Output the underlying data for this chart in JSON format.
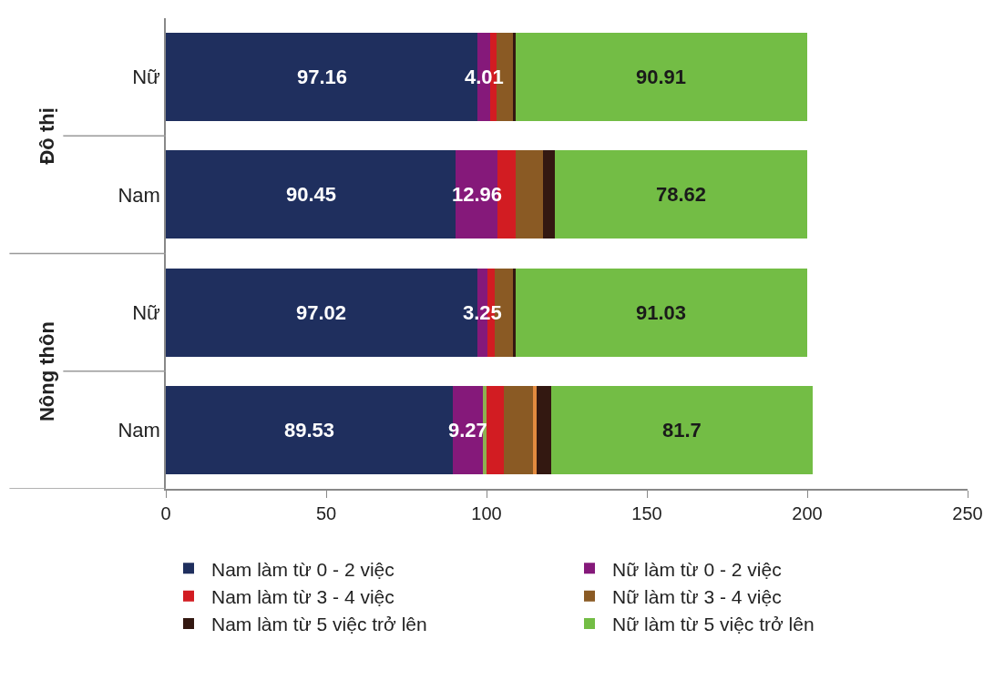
{
  "chart_data": {
    "type": "bar",
    "orientation": "horizontal",
    "stacked": true,
    "categories": [
      "Nữ",
      "Nam",
      "Nữ",
      "Nam"
    ],
    "annotations": [
      "Đô thị",
      "Nông thôn"
    ],
    "series": [
      {
        "name": "Nam làm từ 0 - 2 việc",
        "color": "#1f2f5e",
        "values": [
          97.16,
          90.45,
          97.02,
          89.53
        ],
        "value_labels": [
          "97.16",
          "90.45",
          "97.02",
          "89.53"
        ]
      },
      {
        "name": "Nữ làm từ 0 - 2 việc",
        "color": "#85197a",
        "values": [
          4.01,
          12.96,
          3.25,
          9.27
        ],
        "value_labels": [
          "4.01",
          "12.96",
          "3.25",
          "9.27"
        ]
      },
      {
        "color": "#8db050",
        "values": [
          null,
          null,
          null,
          1.1
        ]
      },
      {
        "name": "Nam làm từ 3 - 4 việc",
        "color": "#d21c22",
        "values": [
          2.0,
          5.6,
          2.2,
          5.6
        ]
      },
      {
        "name": "Nữ làm từ 3 - 4 việc",
        "color": "#8a5a24",
        "values": [
          5.1,
          8.6,
          5.8,
          9.0
        ]
      },
      {
        "color": "#e38b3f",
        "values": [
          null,
          null,
          null,
          1.1
        ]
      },
      {
        "name": "Nam làm từ 5 việc trở lên",
        "color": "#331811",
        "values": [
          0.8,
          3.8,
          0.7,
          4.5
        ]
      },
      {
        "name": "Nữ làm từ 5 việc trở lên",
        "color": "#73bd45",
        "values": [
          90.91,
          78.62,
          91.03,
          81.7
        ],
        "value_labels": [
          "90.91",
          "78.62",
          "91.03",
          "81.7"
        ]
      }
    ],
    "xlim": [
      0,
      250
    ],
    "xticks": [
      0,
      50,
      100,
      150,
      200,
      250
    ],
    "legend": "bottom"
  }
}
